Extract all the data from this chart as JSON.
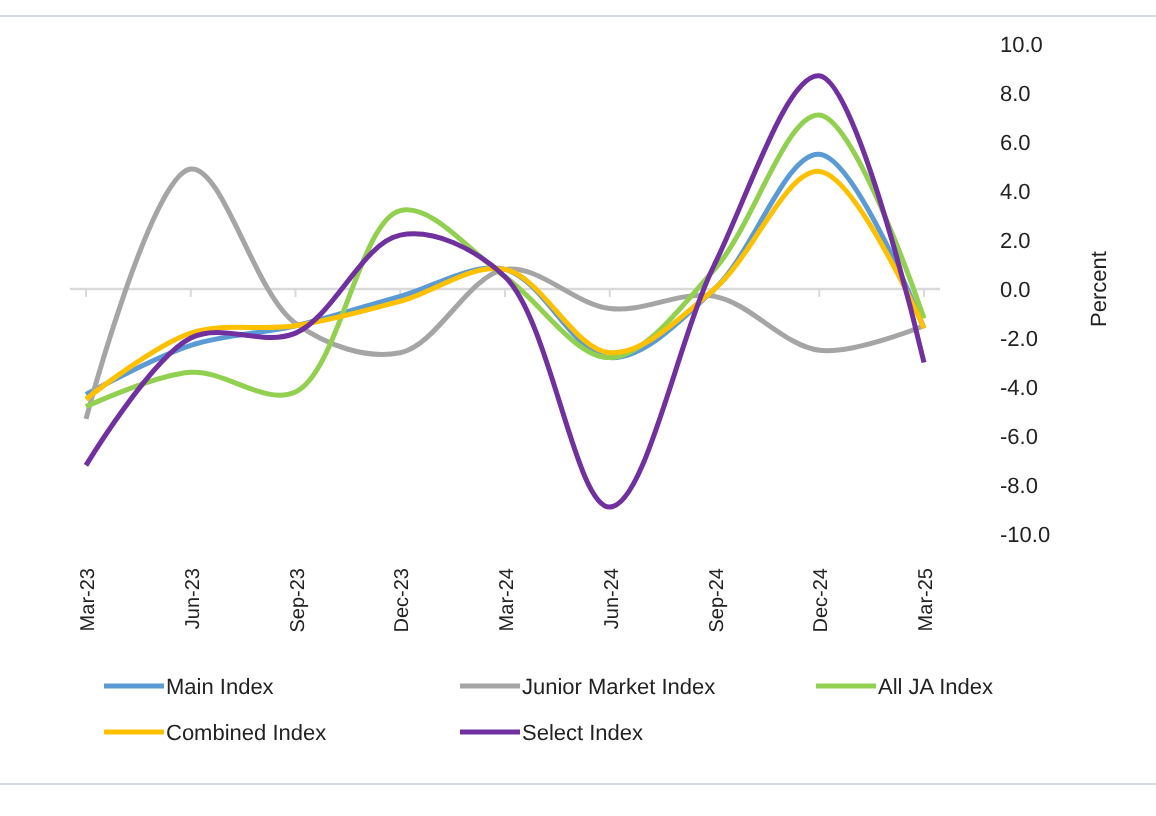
{
  "chart_data": {
    "type": "line",
    "ylabel": "Percent",
    "categories": [
      "Mar-23",
      "Jun-23",
      "Sep-23",
      "Dec-23",
      "Mar-24",
      "Jun-24",
      "Sep-24",
      "Dec-24",
      "Mar-25"
    ],
    "series": [
      {
        "name": "Main Index",
        "color": "#5b9bd5",
        "values": [
          -4.3,
          -2.3,
          -1.5,
          -0.3,
          0.8,
          -2.8,
          0.0,
          5.5,
          -1.6
        ]
      },
      {
        "name": "Junior Market Index",
        "color": "#a5a5a5",
        "values": [
          -5.3,
          4.9,
          -1.4,
          -2.6,
          0.8,
          -0.8,
          -0.3,
          -2.5,
          -1.5
        ]
      },
      {
        "name": "All JA Index",
        "color": "#92d050",
        "values": [
          -4.8,
          -3.4,
          -4.2,
          3.2,
          0.5,
          -2.8,
          0.8,
          7.1,
          -1.2
        ]
      },
      {
        "name": "Combined Index",
        "color": "#ffc000",
        "values": [
          -4.5,
          -1.8,
          -1.5,
          -0.5,
          0.8,
          -2.6,
          0.0,
          4.8,
          -1.6
        ]
      },
      {
        "name": "Select Index",
        "color": "#7030a0",
        "values": [
          -7.2,
          -2.0,
          -1.8,
          2.2,
          0.5,
          -8.9,
          1.0,
          8.7,
          -3.0
        ]
      }
    ],
    "ylim": [
      -10,
      10
    ],
    "yticks": [
      {
        "value": -10,
        "label": "-10.0"
      },
      {
        "value": -8,
        "label": "-8.0"
      },
      {
        "value": -6,
        "label": "-6.0"
      },
      {
        "value": -4,
        "label": "-4.0"
      },
      {
        "value": -2,
        "label": "-2.0"
      },
      {
        "value": 0,
        "label": "0.0"
      },
      {
        "value": 2,
        "label": "2.0"
      },
      {
        "value": 4,
        "label": "4.0"
      },
      {
        "value": 6,
        "label": "6.0"
      },
      {
        "value": 8,
        "label": "8.0"
      },
      {
        "value": 10,
        "label": "10.0"
      }
    ],
    "ref_lines": [
      {
        "axis": "y",
        "value": 0,
        "color": "#d9d9d9"
      }
    ],
    "legend": "bottom",
    "grid": false,
    "marker": "none",
    "line_style": "solid"
  }
}
